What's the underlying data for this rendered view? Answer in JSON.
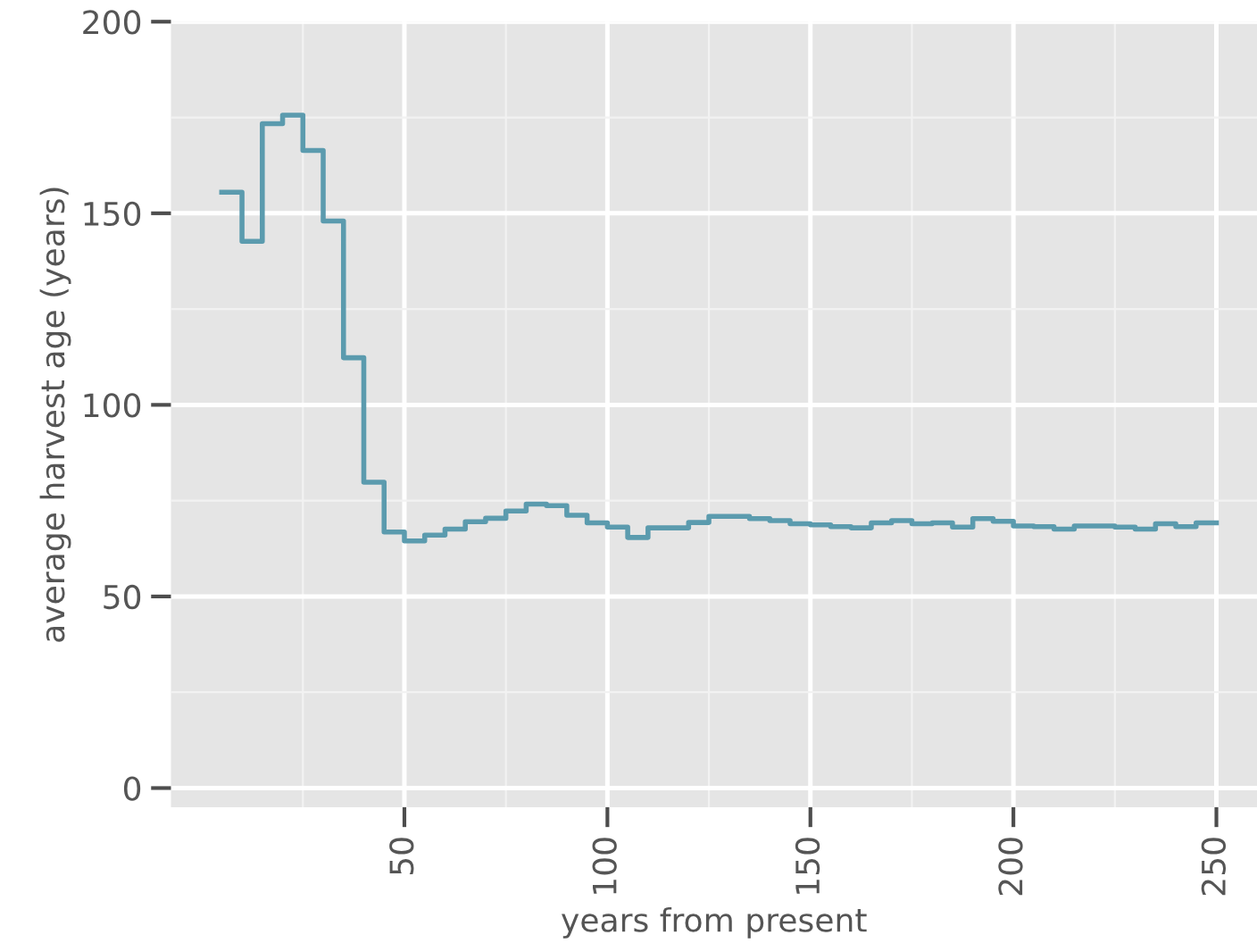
{
  "chart_data": {
    "type": "step",
    "xlabel": "years from present",
    "ylabel": "average harvest age (years)",
    "x": [
      5,
      10,
      15,
      20,
      25,
      30,
      35,
      40,
      45,
      50,
      55,
      60,
      65,
      70,
      75,
      80,
      85,
      90,
      95,
      100,
      105,
      110,
      115,
      120,
      125,
      130,
      135,
      140,
      145,
      150,
      155,
      160,
      165,
      170,
      175,
      180,
      185,
      190,
      195,
      200,
      205,
      210,
      215,
      220,
      225,
      230,
      235,
      240,
      245,
      250
    ],
    "series": [
      {
        "color": "#5b9bae",
        "values": [
          155.5,
          142.7,
          173.4,
          175.6,
          166.4,
          148,
          112.3,
          79.8,
          66.8,
          64.5,
          66,
          67.6,
          69.5,
          70.4,
          72.3,
          74.1,
          73.7,
          71.2,
          69.2,
          68.1,
          65.4,
          67.9,
          67.9,
          69.3,
          70.9,
          70.9,
          70.3,
          69.8,
          69,
          68.7,
          68.2,
          67.9,
          69.2,
          69.8,
          69,
          69.2,
          68.1,
          70.3,
          69.6,
          68.4,
          68.2,
          67.6,
          68.4,
          68.4,
          68.1,
          67.6,
          69,
          68.2,
          69.2,
          69.2
        ]
      }
    ],
    "xlim": [
      -7.5,
      260
    ],
    "ylim": [
      -5,
      200
    ],
    "xticks": [
      50,
      100,
      150,
      200,
      250
    ],
    "yticks": [
      0,
      50,
      100,
      150,
      200
    ],
    "grid": true,
    "marker": "none",
    "line_style": "solid"
  }
}
